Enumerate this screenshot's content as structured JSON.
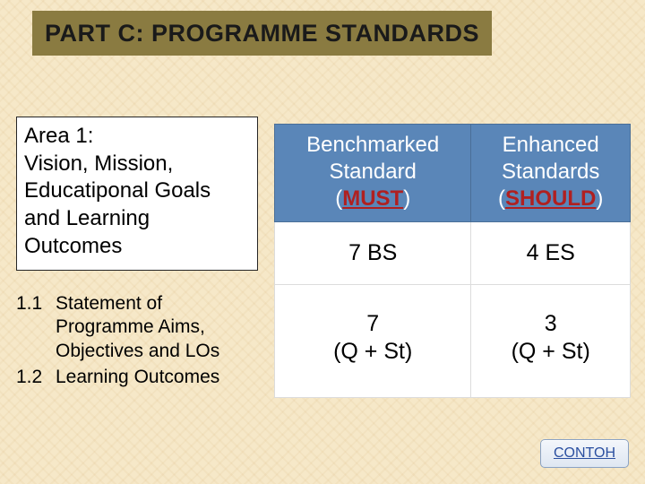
{
  "title_bar": {
    "text": "PART C: PROGRAMME STANDARDS",
    "bg_color": "#8a7b41",
    "text_color": "#161616",
    "fontsize": 27
  },
  "background": {
    "base_color": "#f6e8c8",
    "pattern_color": "rgba(210,170,110,0.10)"
  },
  "area_box": {
    "line1": "Area 1:",
    "line2": "Vision, Mission, Educatiponal Goals and Learning Outcomes",
    "fontsize": 24,
    "bg_color": "#ffffff",
    "border_color": "#262626"
  },
  "sub_items": [
    {
      "num": "1.1",
      "text": "Statement of Programme Aims, Objectives and LOs"
    },
    {
      "num": "1.2",
      "text": "Learning Outcomes"
    }
  ],
  "table": {
    "header_bg": "#5a86b8",
    "header_text_color": "#ffffff",
    "cell_bg": "#ffffff",
    "border_color": "#dcdcdc",
    "columns": [
      {
        "label_line1": "Benchmarked",
        "label_line2": "Standard",
        "paren_open": "(",
        "keyword": "MUST",
        "paren_close": ")",
        "kw_color": "#b02020"
      },
      {
        "label_line1": "Enhanced",
        "label_line2": "Standards",
        "paren_open": "(",
        "keyword": "SHOULD",
        "paren_close": ")",
        "kw_color": "#b02020"
      }
    ],
    "row_mid": {
      "c1": "7 BS",
      "c2": "4 ES"
    },
    "row_bot": {
      "c1_line1": "7",
      "c1_line2": "(Q + St)",
      "c2_line1": "3",
      "c2_line2": "(Q + St)"
    },
    "fontsize_header": 24,
    "fontsize_body": 25
  },
  "contoh_button": {
    "label": "CONTOH",
    "bg_from": "#f3f6fb",
    "bg_to": "#dfe7f2",
    "border_color": "#8aa2c4",
    "text_color": "#2a4fa0"
  }
}
